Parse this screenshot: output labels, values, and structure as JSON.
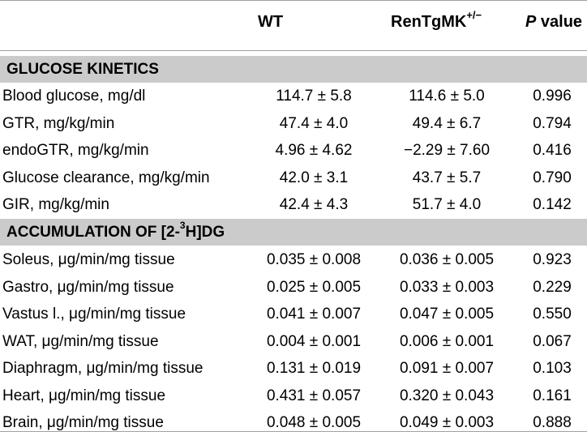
{
  "header": {
    "col_wt": "WT",
    "col_ren_base": "RenTgMK",
    "col_ren_sup": "+/−",
    "col_p_italic": "P",
    "col_p_rest": " value"
  },
  "sections": {
    "glucose": {
      "title": "GLUCOSE KINETICS",
      "rows": [
        {
          "label": "Blood glucose, mg/dl",
          "wt": "114.7 ± 5.8",
          "ren": "114.6 ± 5.0",
          "p": "0.996"
        },
        {
          "label": "GTR, mg/kg/min",
          "wt": "47.4 ± 4.0",
          "ren": "49.4 ± 6.7",
          "p": "0.794"
        },
        {
          "label": "endoGTR, mg/kg/min",
          "wt": "4.96 ± 4.62",
          "ren": "−2.29 ± 7.60",
          "p": "0.416"
        },
        {
          "label": "Glucose clearance, mg/kg/min",
          "wt": "42.0 ± 3.1",
          "ren": "43.7 ± 5.7",
          "p": "0.790"
        },
        {
          "label": "GIR, mg/kg/min",
          "wt": "42.4 ± 4.3",
          "ren": "51.7 ± 4.0",
          "p": "0.142"
        }
      ]
    },
    "accumulation": {
      "title_pre": "ACCUMULATION OF [2-",
      "title_sup": "3",
      "title_post": "H]DG",
      "rows": [
        {
          "label": "Soleus, μg/min/mg tissue",
          "wt": "0.035 ± 0.008",
          "ren": "0.036 ± 0.005",
          "p": "0.923"
        },
        {
          "label": "Gastro, μg/min/mg tissue",
          "wt": "0.025 ± 0.005",
          "ren": "0.033 ± 0.003",
          "p": "0.229"
        },
        {
          "label": "Vastus l., μg/min/mg tissue",
          "wt": "0.041 ± 0.007",
          "ren": "0.047 ± 0.005",
          "p": "0.550"
        },
        {
          "label": "WAT, μg/min/mg tissue",
          "wt": "0.004 ± 0.001",
          "ren": "0.006 ± 0.001",
          "p": "0.067"
        },
        {
          "label": "Diaphragm, μg/min/mg tissue",
          "wt": "0.131 ± 0.019",
          "ren": "0.091 ± 0.007",
          "p": "0.103"
        },
        {
          "label": "Heart, μg/min/mg tissue",
          "wt": "0.431 ± 0.057",
          "ren": "0.320 ± 0.043",
          "p": "0.161"
        },
        {
          "label": "Brain, μg/min/mg tissue",
          "wt": "0.048 ± 0.005",
          "ren": "0.049 ± 0.003",
          "p": "0.888"
        }
      ]
    }
  }
}
